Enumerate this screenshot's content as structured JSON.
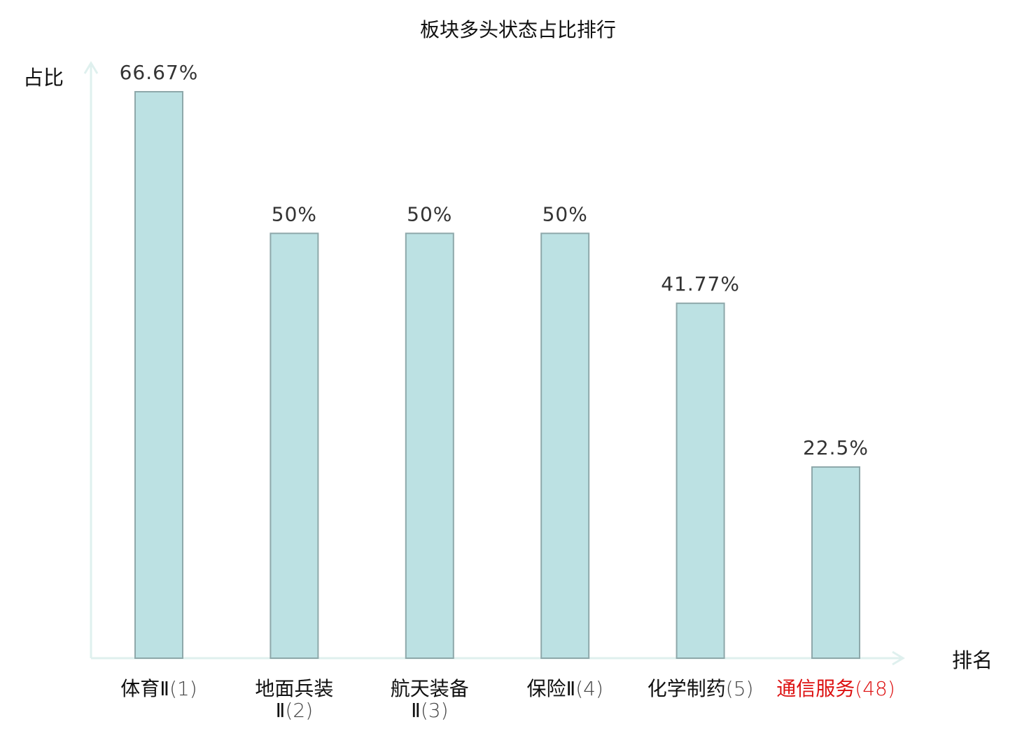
{
  "chart_data": {
    "type": "bar",
    "title": "板块多头状态占比排行",
    "ylabel": "占比",
    "xlabel": "排名",
    "ylim": [
      0,
      70
    ],
    "grid": false,
    "categories": [
      {
        "name_lines": [
          "体育Ⅱ"
        ],
        "rank": "(1)",
        "highlight": false
      },
      {
        "name_lines": [
          "地面兵装",
          "Ⅱ"
        ],
        "rank": "(2)",
        "highlight": false
      },
      {
        "name_lines": [
          "航天装备",
          "Ⅱ"
        ],
        "rank": "(3)",
        "highlight": false
      },
      {
        "name_lines": [
          "保险Ⅱ"
        ],
        "rank": "(4)",
        "highlight": false
      },
      {
        "name_lines": [
          "化学制药"
        ],
        "rank": "(5)",
        "highlight": false
      },
      {
        "name_lines": [
          "通信服务"
        ],
        "rank": "(48)",
        "highlight": true
      }
    ],
    "values": [
      66.67,
      50,
      50,
      50,
      41.77,
      22.5
    ],
    "value_labels": [
      "66.67%",
      "50%",
      "50%",
      "50%",
      "41.77%",
      "22.5%"
    ]
  },
  "colors": {
    "bar_fill": "#bce1e3",
    "bar_stroke": "#8ea8aa",
    "axis": "#dff0ee",
    "text": "#333333",
    "label_text": "#111111",
    "rank_text": "#444444",
    "highlight": "#dd1111"
  }
}
